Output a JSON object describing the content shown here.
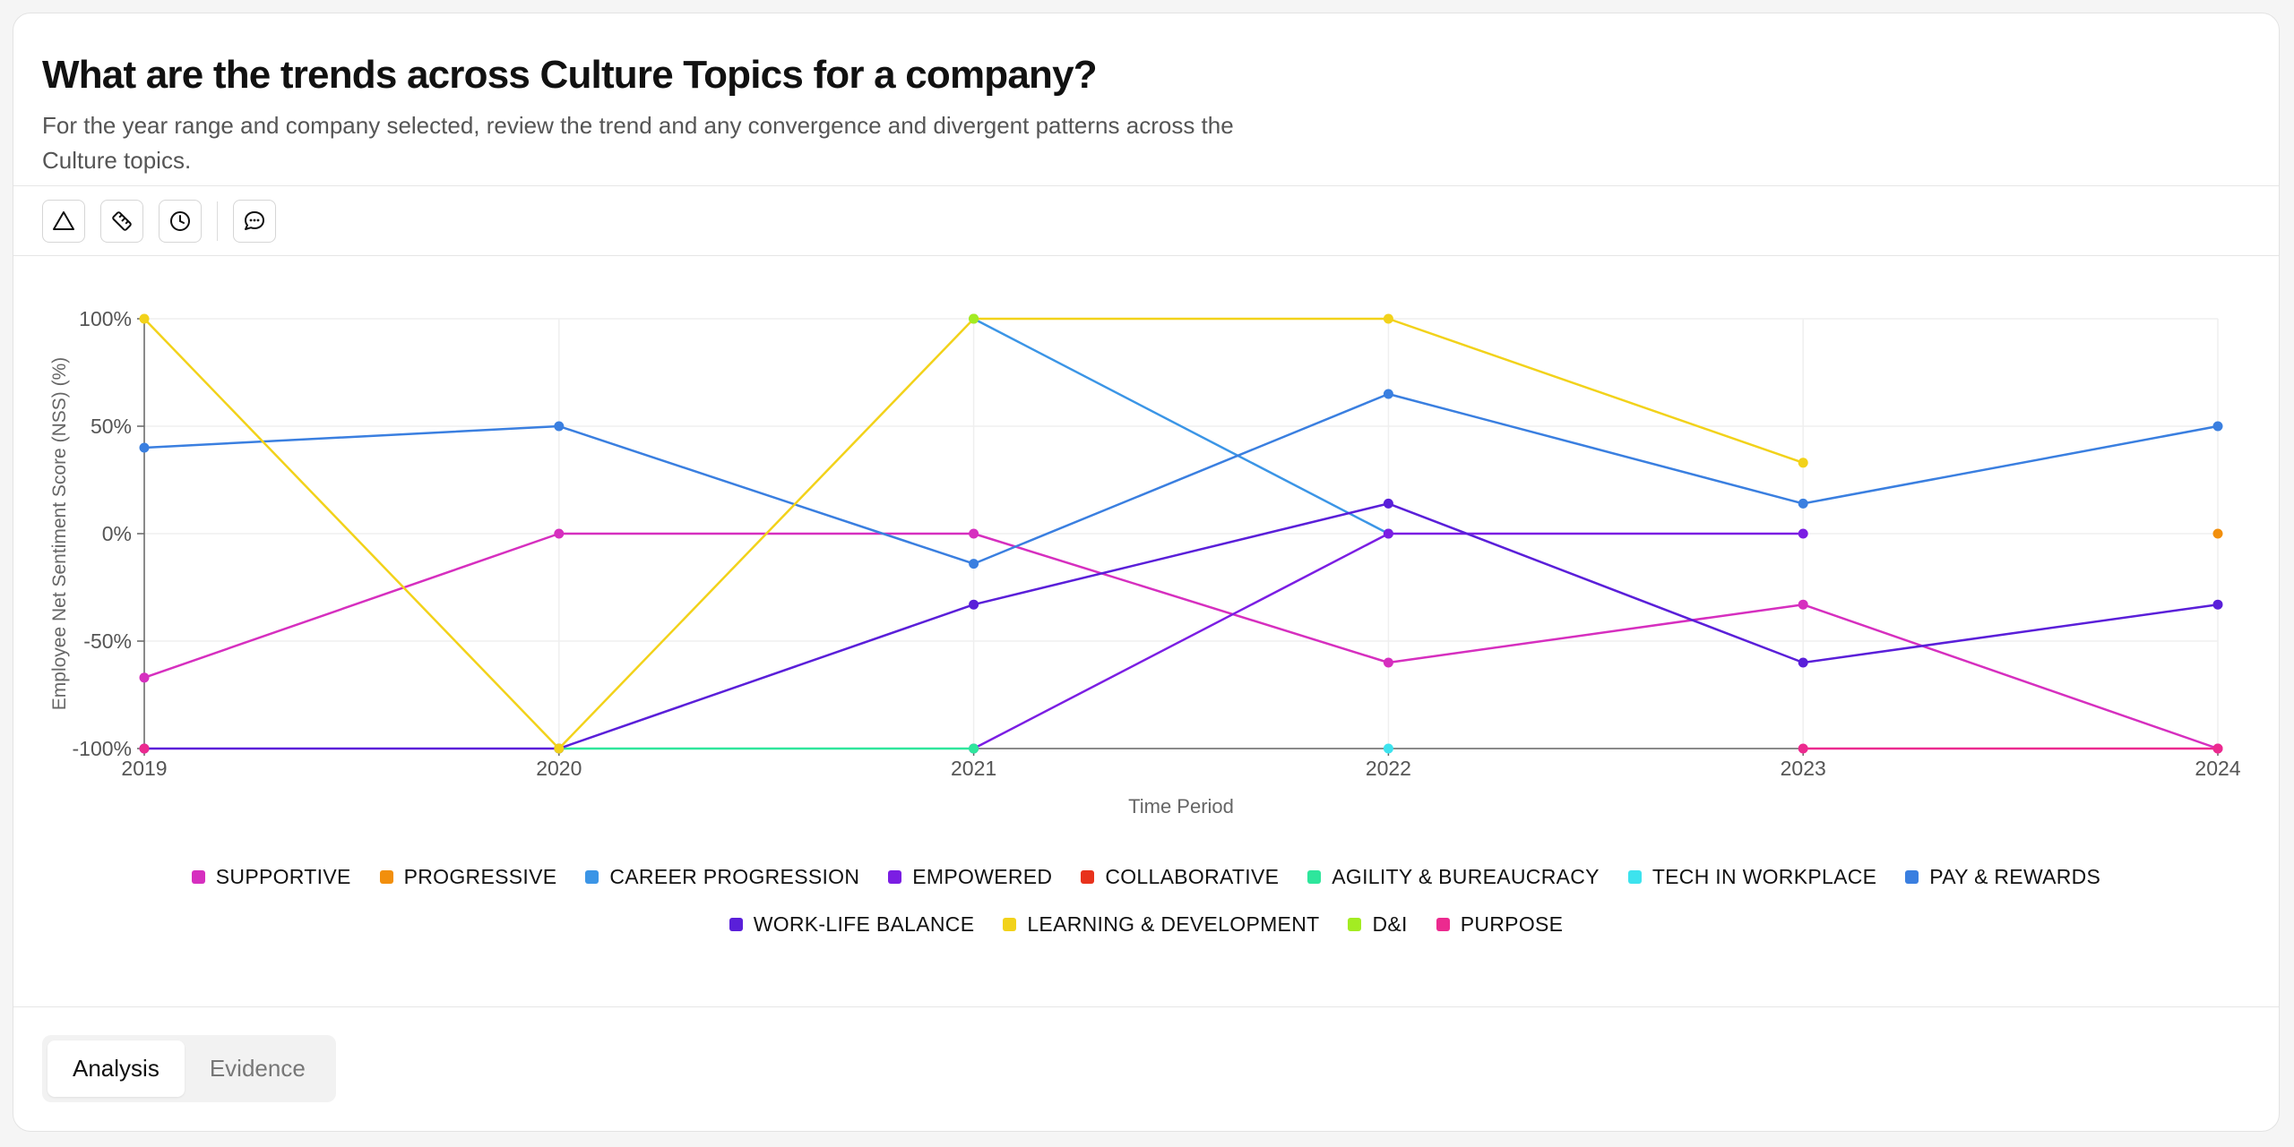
{
  "header": {
    "title": "What are the trends across Culture Topics for a company?",
    "subtitle": "For the year range and company selected, review the trend and any convergence and divergent patterns across the Culture topics."
  },
  "toolbar": {
    "icons": [
      "triangle-icon",
      "ruler-icon",
      "clock-icon",
      "comment-icon"
    ]
  },
  "tabs": [
    {
      "label": "Analysis",
      "active": true
    },
    {
      "label": "Evidence",
      "active": false
    }
  ],
  "chart_data": {
    "type": "line",
    "xlabel": "Time Period",
    "ylabel": "Employee Net Sentiment Score (NSS) (%)",
    "x": [
      "2019",
      "2020",
      "2021",
      "2022",
      "2023",
      "2024"
    ],
    "ylim": [
      -100,
      100
    ],
    "yticks": [
      "100%",
      "50%",
      "0%",
      "-50%",
      "-100%"
    ],
    "ytick_values": [
      100,
      50,
      0,
      -50,
      -100
    ],
    "grid": true,
    "legend_position": "bottom",
    "series": [
      {
        "name": "SUPPORTIVE",
        "color": "#d62fbf",
        "values": [
          -67,
          0,
          0,
          -60,
          -33,
          -100
        ]
      },
      {
        "name": "PROGRESSIVE",
        "color": "#f28f0c",
        "values": [
          null,
          null,
          null,
          null,
          null,
          0
        ]
      },
      {
        "name": "CAREER PROGRESSION",
        "color": "#3b95e6",
        "values": [
          null,
          null,
          100,
          0,
          null,
          null
        ]
      },
      {
        "name": "EMPOWERED",
        "color": "#7b1ee3",
        "values": [
          null,
          null,
          -100,
          0,
          0,
          null
        ]
      },
      {
        "name": "COLLABORATIVE",
        "color": "#e8321c",
        "values": [
          null,
          null,
          null,
          null,
          null,
          null
        ]
      },
      {
        "name": "AGILITY & BUREAUCRACY",
        "color": "#2ee69c",
        "values": [
          null,
          -100,
          -100,
          null,
          null,
          null
        ]
      },
      {
        "name": "TECH IN WORKPLACE",
        "color": "#3de3ee",
        "values": [
          null,
          null,
          null,
          -100,
          null,
          null
        ]
      },
      {
        "name": "PAY & REWARDS",
        "color": "#3a7fe0",
        "values": [
          40,
          50,
          -14,
          65,
          14,
          50
        ]
      },
      {
        "name": "WORK-LIFE BALANCE",
        "color": "#5a1fd9",
        "values": [
          -100,
          -100,
          -33,
          14,
          -60,
          -33
        ]
      },
      {
        "name": "LEARNING & DEVELOPMENT",
        "color": "#f2d21a",
        "values": [
          100,
          -100,
          100,
          100,
          33,
          null
        ]
      },
      {
        "name": "D&I",
        "color": "#a3ec22",
        "values": [
          null,
          null,
          100,
          null,
          null,
          null
        ]
      },
      {
        "name": "PURPOSE",
        "color": "#ec2a8f",
        "values": [
          -100,
          null,
          null,
          null,
          -100,
          -100
        ]
      }
    ]
  }
}
